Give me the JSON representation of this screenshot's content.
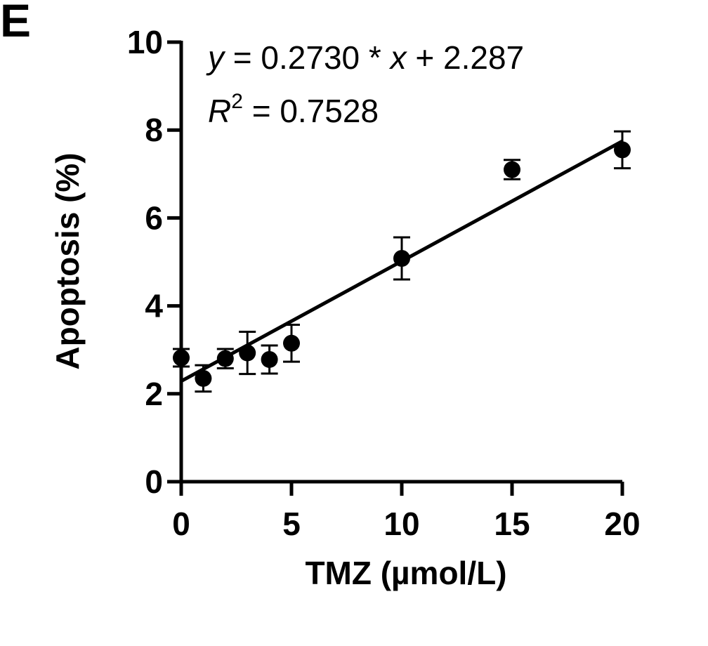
{
  "panel_label": "E",
  "chart_data": {
    "type": "scatter",
    "xlabel": "TMZ (µmol/L)",
    "ylabel": "Apoptosis (%)",
    "xlim": [
      0,
      20
    ],
    "ylim": [
      0,
      10
    ],
    "x_ticks": [
      0,
      5,
      10,
      15,
      20
    ],
    "y_ticks": [
      0,
      2,
      4,
      6,
      8,
      10
    ],
    "grid": false,
    "legend": "none",
    "series": [
      {
        "x": [
          0,
          1,
          2,
          3,
          4,
          5,
          10,
          15,
          20
        ],
        "y": [
          2.82,
          2.35,
          2.8,
          2.93,
          2.78,
          3.15,
          5.08,
          7.1,
          7.55
        ],
        "error": [
          0.2,
          0.3,
          0.22,
          0.48,
          0.32,
          0.42,
          0.48,
          0.22,
          0.42
        ]
      }
    ],
    "fit": {
      "slope": 0.273,
      "intercept": 2.287
    },
    "annotations": {
      "eq_y": "y",
      "eq_middle": " = 0.2730 * ",
      "eq_x": "x",
      "eq_tail": " + 2.287",
      "r2_r": "R",
      "r2_sup": "2",
      "r2_tail": " = 0.7528"
    },
    "marker_color": "#000000"
  }
}
